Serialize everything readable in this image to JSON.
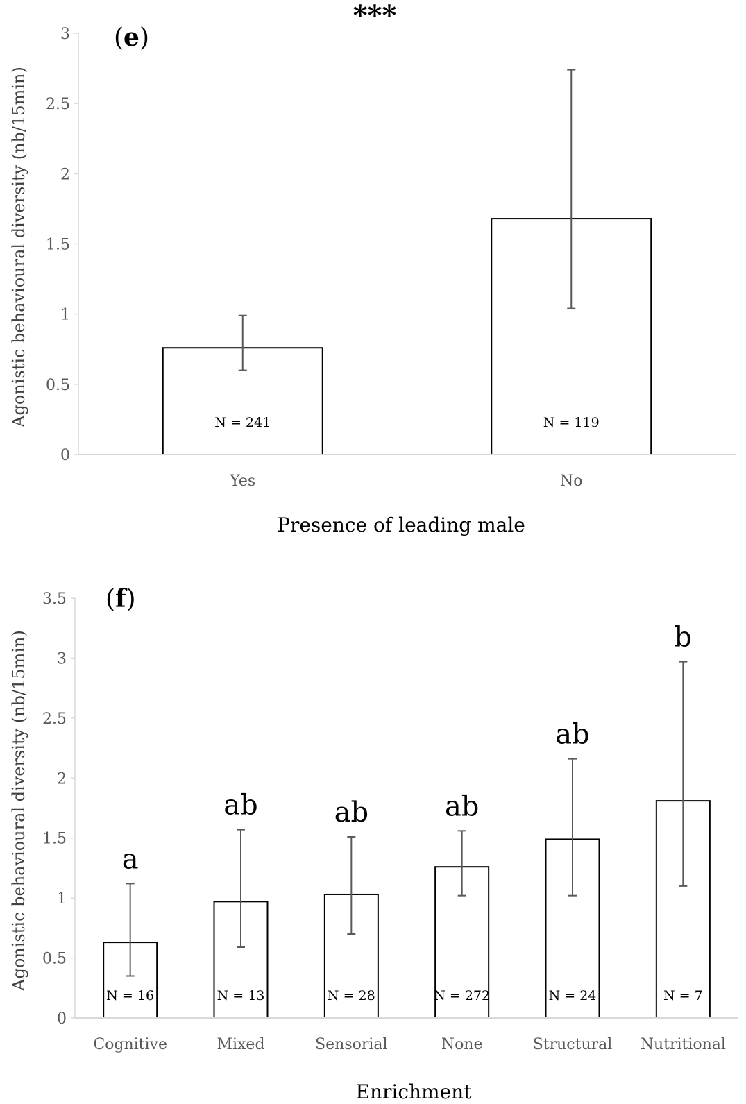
{
  "chart_data": [
    {
      "type": "bar",
      "panel": "e",
      "significance": "***",
      "categories": [
        "Yes",
        "No"
      ],
      "values": [
        0.76,
        1.68
      ],
      "error_low": [
        0.6,
        1.04
      ],
      "error_high": [
        0.99,
        2.74
      ],
      "n_labels": [
        "N = 241",
        "N = 119"
      ],
      "xlabel": "Presence of leading male",
      "ylabel": "Agonistic behavioural diversity (nb/15min)",
      "ylim": [
        0,
        3
      ],
      "yticks": [
        "0",
        "0.5",
        "1",
        "1.5",
        "2",
        "2.5",
        "3"
      ],
      "grid": false,
      "legend": "none"
    },
    {
      "type": "bar",
      "panel": "f",
      "categories": [
        "Cognitive",
        "Mixed",
        "Sensorial",
        "None",
        "Structural",
        "Nutritional"
      ],
      "values": [
        0.63,
        0.97,
        1.03,
        1.26,
        1.49,
        1.81
      ],
      "error_low": [
        0.35,
        0.59,
        0.7,
        1.02,
        1.02,
        1.1
      ],
      "error_high": [
        1.12,
        1.57,
        1.51,
        1.56,
        2.16,
        2.97
      ],
      "group_letters": [
        "a",
        "ab",
        "ab",
        "ab",
        "ab",
        "b"
      ],
      "n_labels": [
        "N = 16",
        "N = 13",
        "N = 28",
        "N = 272",
        "N = 24",
        "N = 7"
      ],
      "xlabel": "Enrichment",
      "ylabel": "Agonistic behavioural diversity (nb/15min)",
      "ylim": [
        0,
        3.5
      ],
      "yticks": [
        "0",
        "0.5",
        "1",
        "1.5",
        "2",
        "2.5",
        "3",
        "3.5"
      ],
      "grid": false,
      "legend": "none"
    }
  ],
  "colors": {
    "bar_fill": "#ffffff",
    "bar_stroke": "#000000",
    "axis": "#d9d9d9",
    "error_bar": "#595959"
  }
}
